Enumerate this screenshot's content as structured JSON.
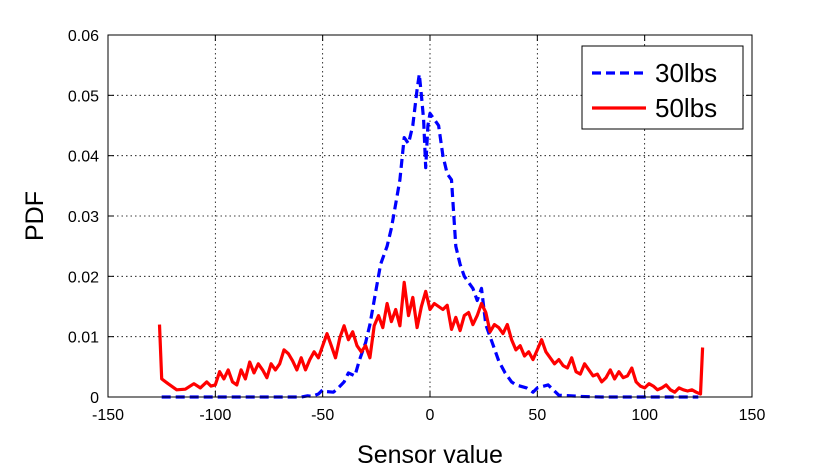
{
  "chart_data": {
    "type": "line",
    "title": "",
    "xlabel": "Sensor value",
    "ylabel": "PDF",
    "xlim": [
      -150,
      150
    ],
    "ylim": [
      0,
      0.06
    ],
    "xticks": [
      -150,
      -100,
      -50,
      0,
      50,
      100,
      150
    ],
    "yticks": [
      0,
      0.01,
      0.02,
      0.03,
      0.04,
      0.05,
      0.06
    ],
    "xtick_labels": [
      "-150",
      "-100",
      "-50",
      "0",
      "50",
      "100",
      "150"
    ],
    "ytick_labels": [
      "0",
      "0.01",
      "0.02",
      "0.03",
      "0.04",
      "0.05",
      "0.06"
    ],
    "grid": true,
    "legend_position": "top-right",
    "series": [
      {
        "name": "30lbs",
        "color": "#0000ff",
        "style": "dashed",
        "x": [
          -125,
          -100,
          -75,
          -60,
          -57,
          -55,
          -52,
          -50,
          -48,
          -45,
          -43,
          -40,
          -38,
          -35,
          -33,
          -30,
          -28,
          -25,
          -23,
          -20,
          -18,
          -16,
          -14,
          -12,
          -10,
          -8,
          -6,
          -5,
          -4,
          -3,
          -2,
          -1,
          0,
          2,
          4,
          6,
          8,
          10,
          12,
          14,
          16,
          18,
          20,
          22,
          24,
          26,
          28,
          30,
          32,
          35,
          38,
          40,
          45,
          48,
          50,
          55,
          60,
          70,
          80,
          100,
          125
        ],
        "y": [
          0,
          0,
          0,
          0,
          0.0002,
          0.0001,
          0.0005,
          0.0012,
          0.0009,
          0.0008,
          0.0014,
          0.0025,
          0.004,
          0.0035,
          0.006,
          0.009,
          0.012,
          0.018,
          0.022,
          0.025,
          0.028,
          0.032,
          0.036,
          0.043,
          0.042,
          0.045,
          0.051,
          0.0535,
          0.05,
          0.046,
          0.038,
          0.045,
          0.047,
          0.046,
          0.045,
          0.04,
          0.037,
          0.036,
          0.025,
          0.022,
          0.02,
          0.019,
          0.018,
          0.016,
          0.018,
          0.012,
          0.01,
          0.008,
          0.006,
          0.004,
          0.0025,
          0.002,
          0.0015,
          0.0008,
          0.0015,
          0.002,
          0.0003,
          0.0001,
          0,
          0,
          0
        ]
      },
      {
        "name": "50lbs",
        "color": "#ff0000",
        "style": "solid",
        "x": [
          -126,
          -125,
          -122,
          -118,
          -114,
          -110,
          -107,
          -104,
          -102,
          -100,
          -98,
          -96,
          -94,
          -92,
          -90,
          -88,
          -86,
          -84,
          -82,
          -80,
          -78,
          -76,
          -74,
          -72,
          -70,
          -68,
          -66,
          -64,
          -62,
          -60,
          -58,
          -56,
          -54,
          -52,
          -50,
          -48,
          -46,
          -44,
          -42,
          -40,
          -38,
          -36,
          -34,
          -32,
          -30,
          -28,
          -26,
          -24,
          -22,
          -20,
          -18,
          -16,
          -14,
          -12,
          -10,
          -8,
          -6,
          -4,
          -2,
          0,
          2,
          4,
          6,
          8,
          10,
          12,
          14,
          16,
          18,
          20,
          22,
          24,
          26,
          28,
          30,
          32,
          34,
          36,
          38,
          40,
          42,
          44,
          46,
          48,
          50,
          52,
          54,
          56,
          58,
          60,
          62,
          64,
          66,
          68,
          70,
          72,
          74,
          76,
          78,
          80,
          82,
          84,
          86,
          88,
          90,
          92,
          94,
          96,
          98,
          100,
          102,
          104,
          106,
          108,
          110,
          112,
          114,
          116,
          118,
          120,
          122,
          124,
          126,
          127
        ],
        "y": [
          0.012,
          0.003,
          0.0022,
          0.0012,
          0.0013,
          0.0022,
          0.0015,
          0.0025,
          0.0018,
          0.002,
          0.0042,
          0.003,
          0.0045,
          0.0025,
          0.002,
          0.0045,
          0.003,
          0.0058,
          0.004,
          0.0055,
          0.0045,
          0.0032,
          0.0055,
          0.0045,
          0.0055,
          0.0078,
          0.0072,
          0.006,
          0.0045,
          0.0065,
          0.0045,
          0.0062,
          0.0075,
          0.0065,
          0.0085,
          0.0105,
          0.0085,
          0.0065,
          0.0098,
          0.0118,
          0.0095,
          0.0108,
          0.0085,
          0.0075,
          0.0085,
          0.0065,
          0.0118,
          0.0135,
          0.0115,
          0.0155,
          0.0125,
          0.0145,
          0.0118,
          0.019,
          0.0135,
          0.0165,
          0.0115,
          0.015,
          0.0175,
          0.0145,
          0.0155,
          0.015,
          0.0145,
          0.0152,
          0.0112,
          0.0132,
          0.011,
          0.0135,
          0.014,
          0.012,
          0.0135,
          0.0155,
          0.014,
          0.0108,
          0.012,
          0.0115,
          0.0105,
          0.012,
          0.0095,
          0.0078,
          0.0085,
          0.0068,
          0.0075,
          0.0062,
          0.0078,
          0.0095,
          0.0075,
          0.0065,
          0.0055,
          0.0062,
          0.0052,
          0.0048,
          0.0065,
          0.0042,
          0.0038,
          0.0055,
          0.0045,
          0.0035,
          0.0038,
          0.0025,
          0.0032,
          0.0045,
          0.003,
          0.0042,
          0.0032,
          0.0035,
          0.0048,
          0.0025,
          0.0018,
          0.0015,
          0.0022,
          0.0018,
          0.0012,
          0.0015,
          0.002,
          0.0012,
          0.0008,
          0.0015,
          0.0012,
          0.001,
          0.0012,
          0.0008,
          0.0005,
          0.0082
        ]
      }
    ]
  }
}
